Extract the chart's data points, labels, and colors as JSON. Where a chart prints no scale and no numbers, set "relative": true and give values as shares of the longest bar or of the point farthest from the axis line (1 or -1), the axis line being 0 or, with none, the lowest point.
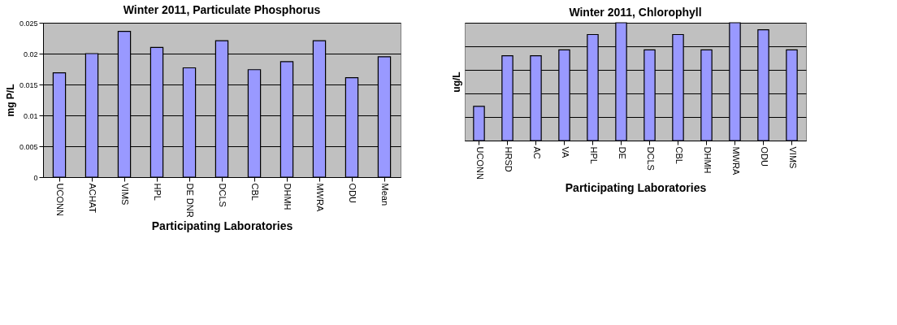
{
  "chart_data": [
    {
      "type": "bar",
      "title": "Winter 2011, Particulate Phosphorus",
      "xlabel": "Participating Laboratories",
      "ylabel": "mg P/L",
      "categories": [
        "UCONN",
        "ACHAT",
        "VIMS",
        "HPL",
        "DE DNR",
        "DCLS",
        "CBL",
        "DHMH",
        "MWRA",
        "ODU",
        "Mean"
      ],
      "series": [
        {
          "color": "#9999ff",
          "values": [
            0.0169,
            0.02,
            0.0236,
            0.021,
            0.0177,
            0.0221,
            0.0174,
            0.0187,
            0.0221,
            0.0161,
            0.0195
          ]
        }
      ],
      "ylim": [
        0,
        0.025
      ],
      "yticks": [
        0,
        0.005,
        0.01,
        0.015,
        0.02,
        0.025
      ],
      "grid": "y"
    },
    {
      "type": "bar",
      "title": "Winter 2011, Chlorophyll",
      "xlabel": "Participating Laboratories",
      "ylabel": "ug/L",
      "relative": true,
      "categories": [
        "UCONN",
        "HRSD",
        "AC",
        "VA",
        "HPL",
        "DE",
        "DCLS",
        "CBL",
        "DHMH",
        "MWRA",
        "ODU",
        "VIMS"
      ],
      "series": [
        {
          "color": "#9999ff",
          "values": [
            0.29,
            0.72,
            0.72,
            0.77,
            0.9,
            1,
            0.77,
            0.9,
            0.77,
            1,
            0.94,
            0.77
          ]
        }
      ],
      "grid": "y"
    }
  ]
}
